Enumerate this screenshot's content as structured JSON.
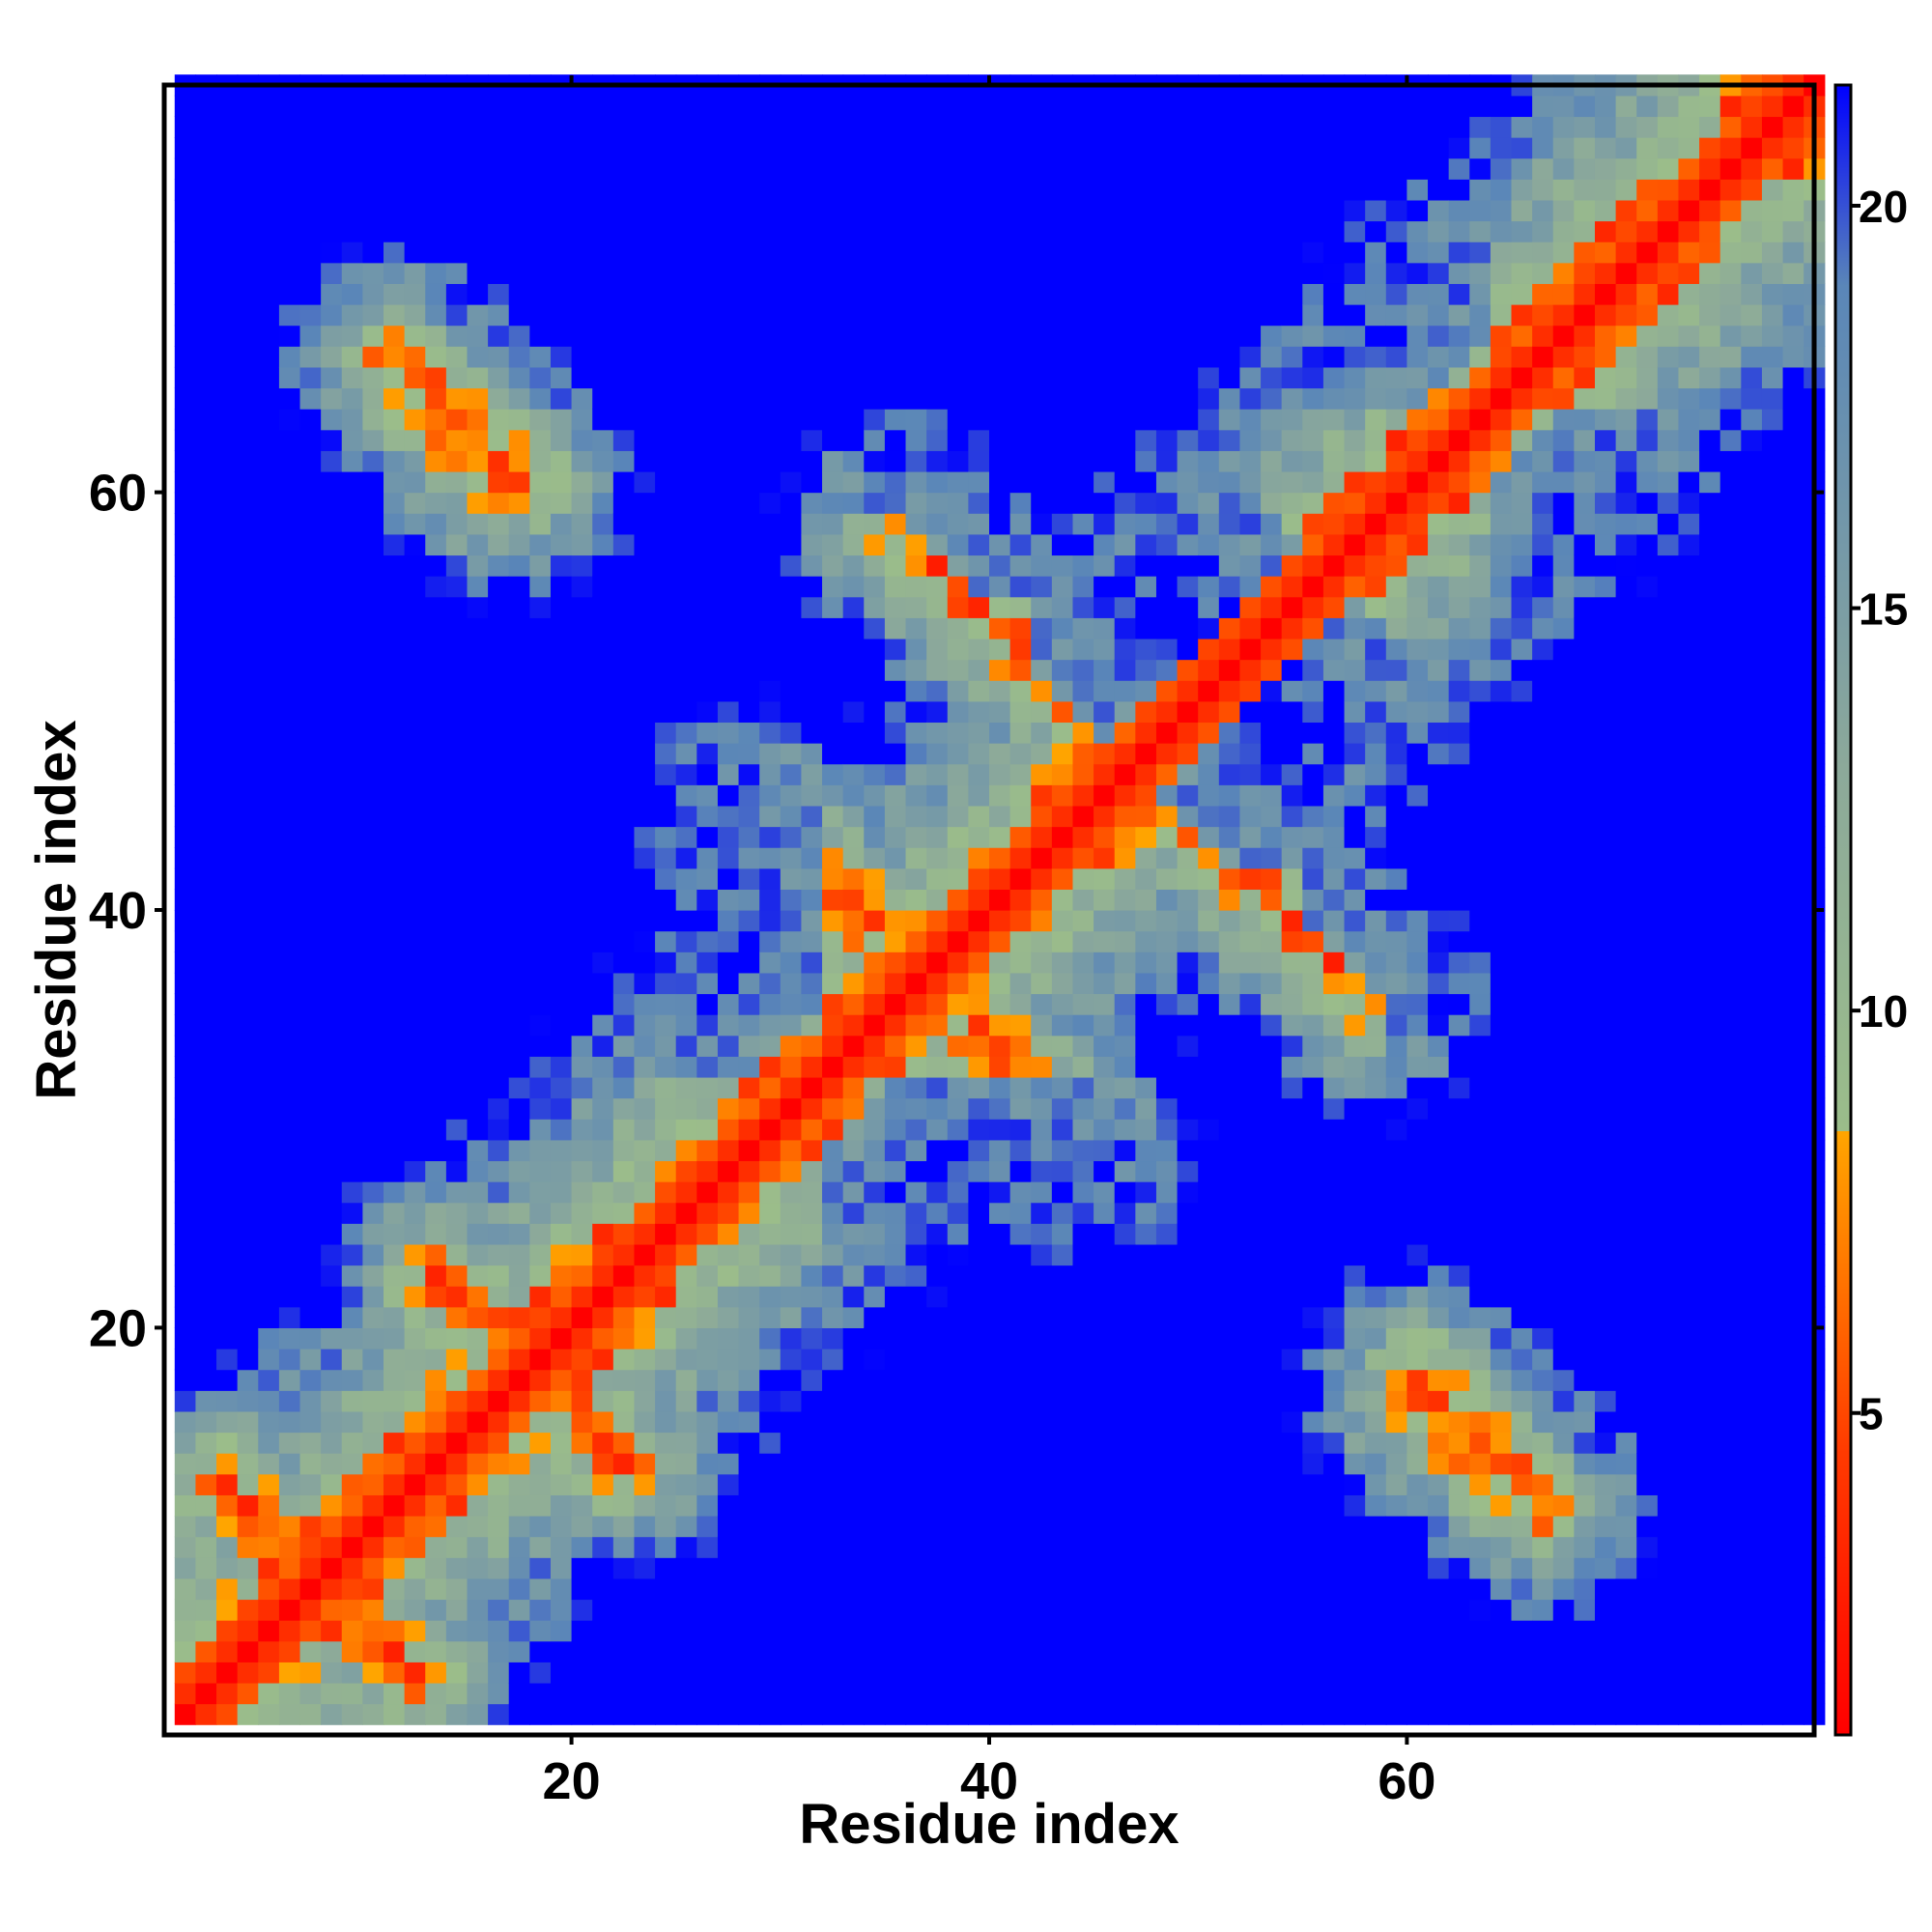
{
  "chart_data": {
    "type": "heatmap",
    "title": "",
    "xlabel": "Residue index",
    "ylabel": "Residue index",
    "n_residues": 79,
    "xlim": [
      1,
      79
    ],
    "ylim": [
      1,
      79
    ],
    "x_ticks": [
      20,
      40,
      60
    ],
    "y_ticks": [
      20,
      40,
      60
    ],
    "x_tick_labels": [
      "20",
      "40",
      "60"
    ],
    "y_tick_labels": [
      "20",
      "40",
      "60"
    ],
    "colorbar": {
      "ticks": [
        5,
        10,
        15,
        20
      ],
      "tick_labels": [
        "5",
        "10",
        "15",
        "20"
      ],
      "range": [
        1,
        21.5
      ],
      "stops": [
        {
          "value": 1,
          "color": "#ff0000"
        },
        {
          "value": 4.5,
          "color": "#ff3a00"
        },
        {
          "value": 8.5,
          "color": "#ffa500"
        },
        {
          "value": 8.5,
          "color": "#9bbd8a"
        },
        {
          "value": 13,
          "color": "#8ca99a"
        },
        {
          "value": 19,
          "color": "#5a86b8"
        },
        {
          "value": 21.5,
          "color": "#0000ff"
        }
      ]
    },
    "matrix_description": "Symmetric residue-residue distance map (Angstrom). Red diagonal band (|i-j|<=1 ~3.8), orange contacts along anti-diagonal segments, green/grey-blue intermediate distances, blue for distances above ~21.",
    "contact_segments": [
      {
        "i": [
          3,
          9
        ],
        "j": [
          12,
          6
        ]
      },
      {
        "i": [
          11,
          16
        ],
        "j": [
          66,
          60
        ]
      },
      {
        "i": [
          13,
          21
        ],
        "j": [
          22,
          14
        ]
      },
      {
        "i": [
          28,
          37
        ],
        "j": [
          44,
          36
        ]
      },
      {
        "i": [
          35,
          45
        ],
        "j": [
          58,
          48
        ]
      },
      {
        "i": [
          44,
          58
        ],
        "j": [
          49,
          35
        ]
      },
      {
        "i": [
          60,
          66
        ],
        "j": [
          17,
          11
        ]
      }
    ],
    "far_regions": [
      {
        "i_center": 5,
        "j_center": 55
      },
      {
        "i_center": 18,
        "j_center": 72
      },
      {
        "i_center": 33,
        "j_center": 70
      },
      {
        "i_center": 57,
        "j_center": 70
      },
      {
        "i_center": 74,
        "j_center": 55
      },
      {
        "i_center": 74,
        "j_center": 34
      },
      {
        "i_center": 74,
        "j_center": 18
      },
      {
        "i_center": 58,
        "j_center": 5
      },
      {
        "i_center": 35,
        "j_center": 8
      },
      {
        "i_center": 12,
        "j_center": 45
      },
      {
        "i_center": 25,
        "j_center": 38
      },
      {
        "i_center": 43,
        "j_center": 25
      },
      {
        "i_center": 54,
        "j_center": 48
      },
      {
        "i_center": 42,
        "j_center": 61
      },
      {
        "i_center": 65,
        "j_center": 35
      }
    ]
  }
}
